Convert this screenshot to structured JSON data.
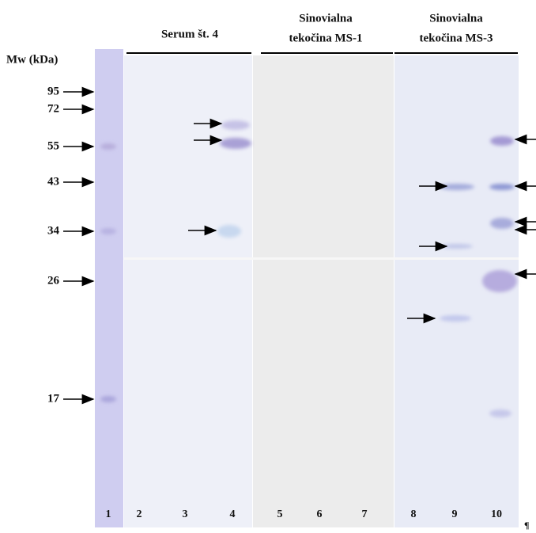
{
  "axis_label": "Mw (kDa)",
  "markers": [
    "95",
    "72",
    "55",
    "43",
    "34",
    "26",
    "17"
  ],
  "groups": [
    {
      "lines": [
        "Serum št. 4"
      ]
    },
    {
      "lines": [
        "Sinovialna",
        "tekočina MS-1"
      ]
    },
    {
      "lines": [
        "Sinovialna",
        "tekočina MS-3"
      ]
    }
  ],
  "lanes": [
    "1",
    "2",
    "3",
    "4",
    "5",
    "6",
    "7",
    "8",
    "9",
    "10"
  ],
  "pilcrow": "¶"
}
